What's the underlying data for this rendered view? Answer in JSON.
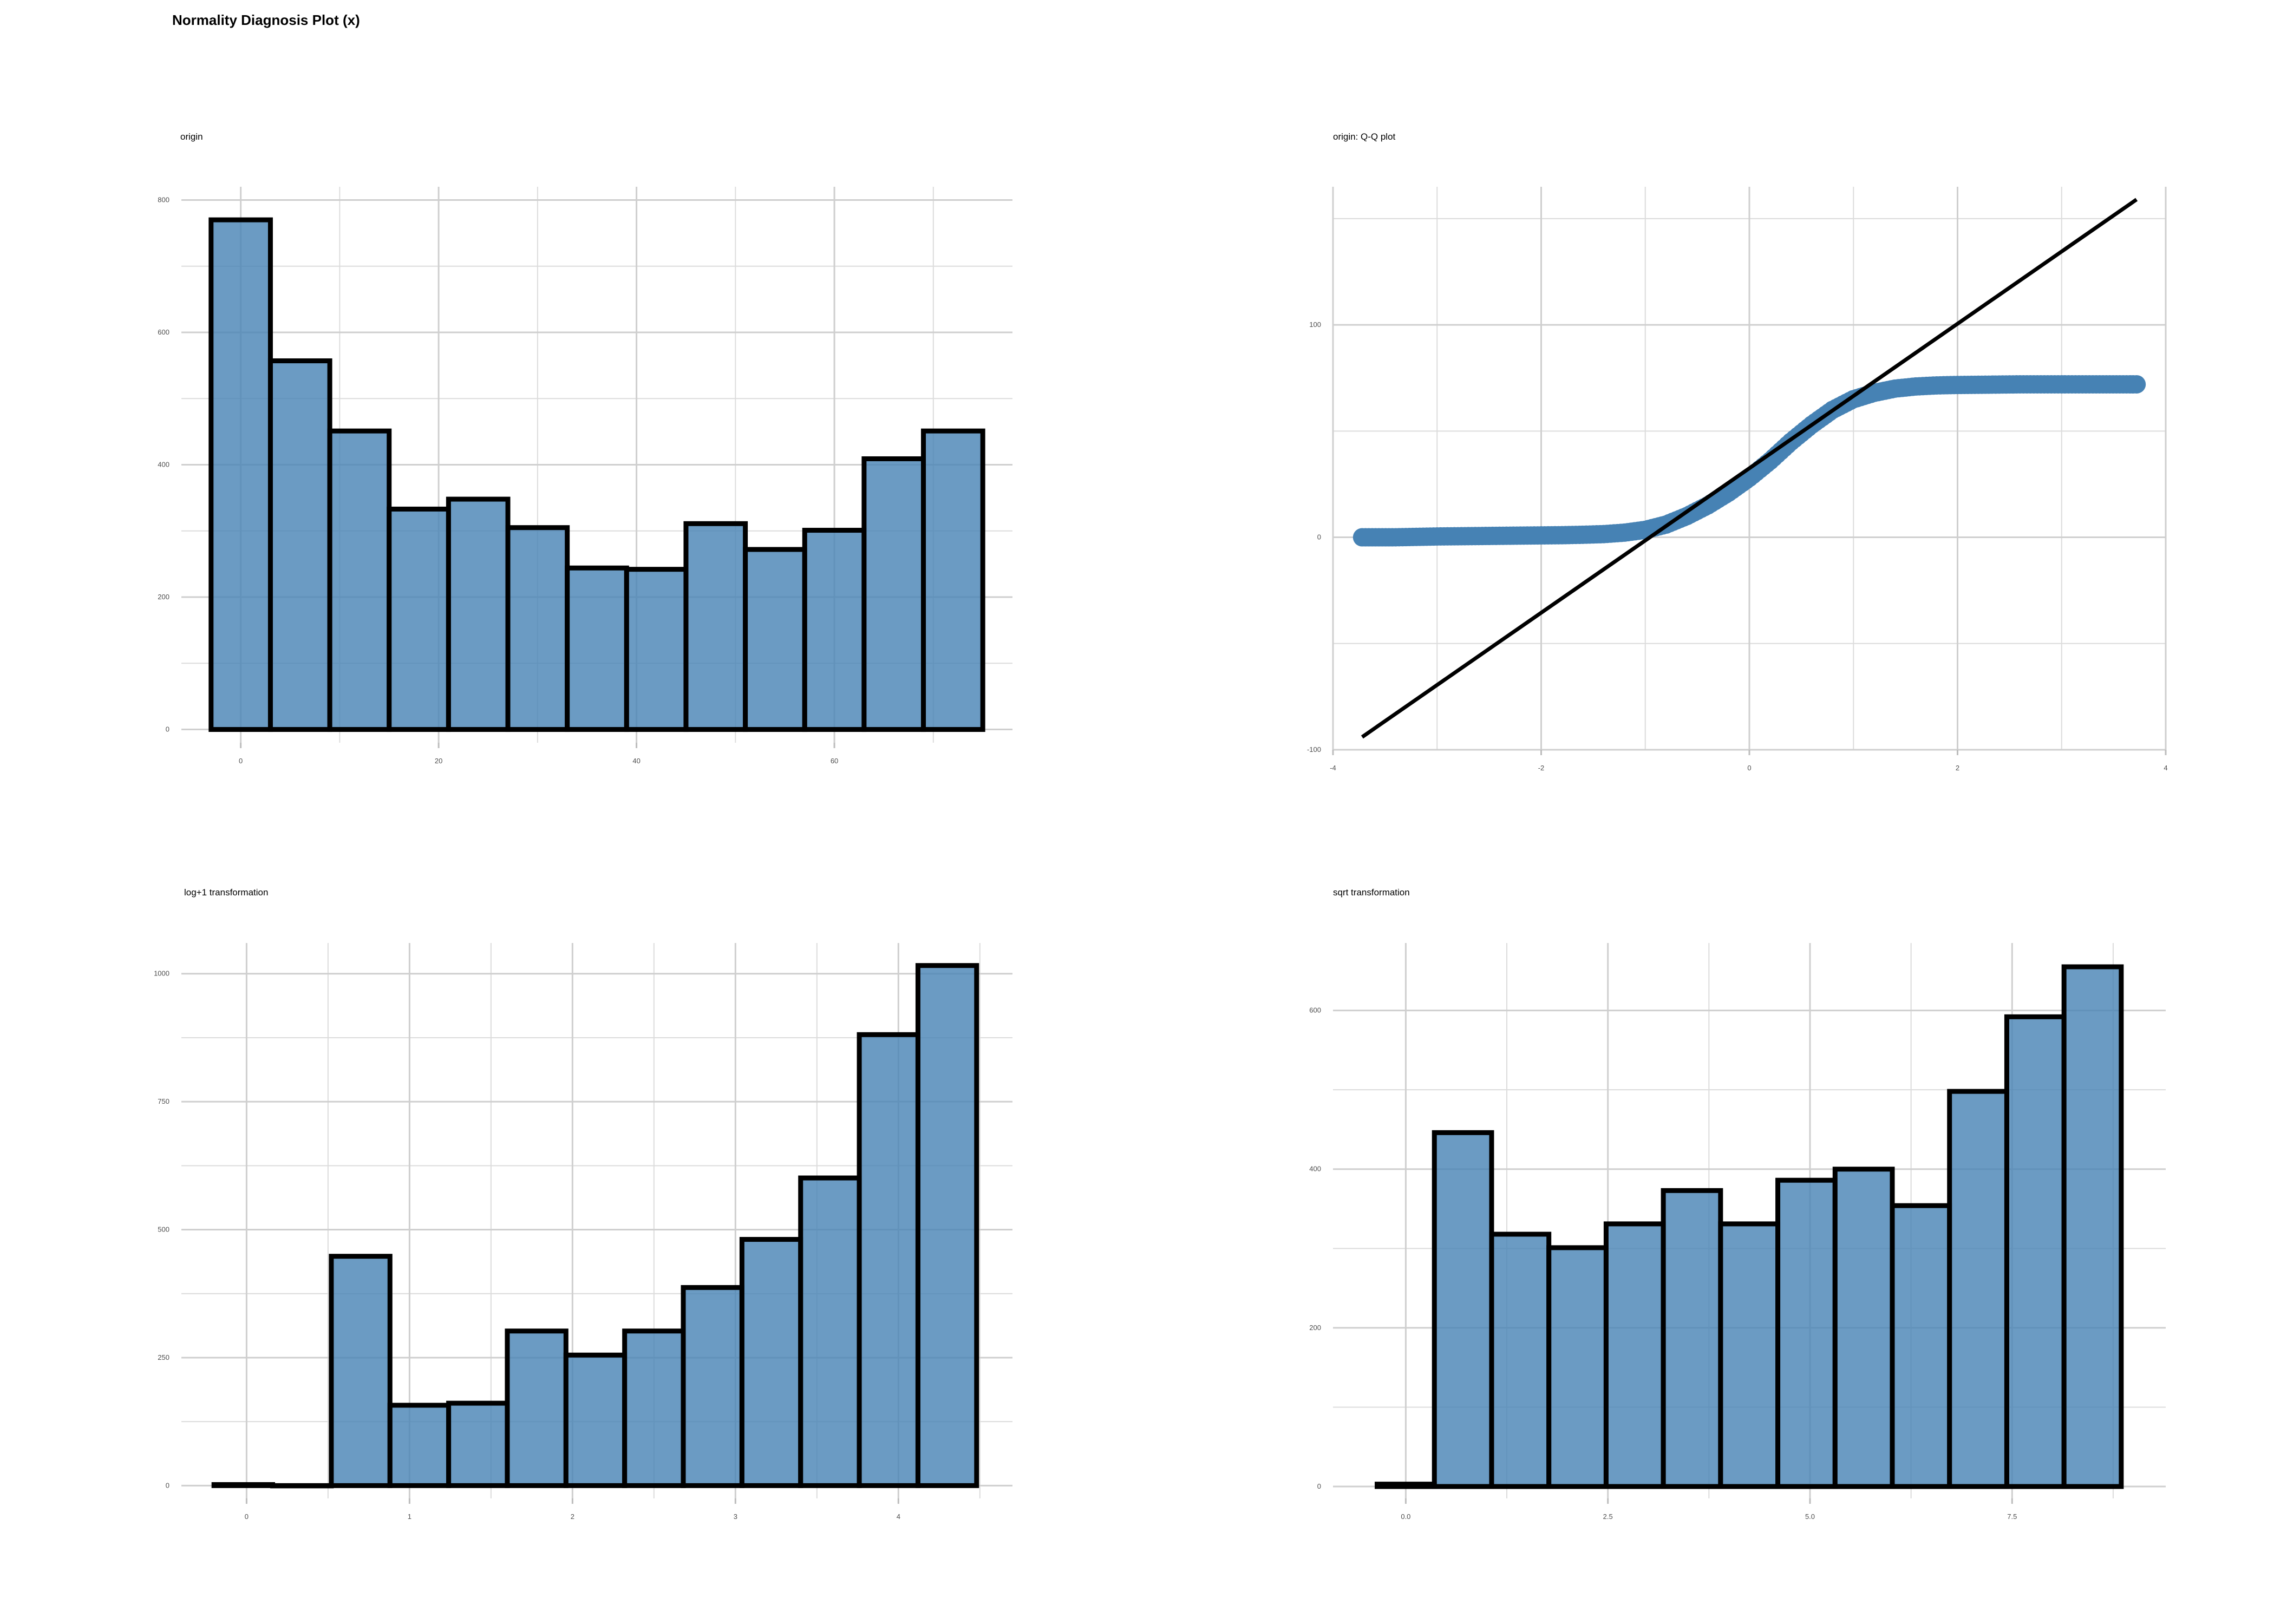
{
  "title": "Normality Diagnosis Plot (x)",
  "colors": {
    "bar_fill": "#4682b4",
    "bar_outline": "#000000",
    "grid": "#cfcfcf",
    "point": "#4682b4",
    "line": "#000000"
  },
  "chart_data": [
    {
      "id": "origin",
      "type": "bar",
      "title": "origin",
      "xlabel": "",
      "ylabel": "",
      "xlim": [
        -6,
        78
      ],
      "ylim": [
        -20,
        820
      ],
      "xticks": [
        0,
        20,
        40,
        60
      ],
      "xtick_labels": [
        "0",
        "20",
        "40",
        "60"
      ],
      "yticks": [
        0,
        200,
        400,
        600,
        800
      ],
      "ytick_labels": [
        "0",
        "200",
        "400",
        "600",
        "800"
      ],
      "bin_width": 6,
      "bin_starts": [
        -3,
        3,
        9,
        15,
        21,
        27,
        33,
        39,
        45,
        51,
        57,
        63,
        69
      ],
      "values": [
        770,
        557,
        451,
        333,
        348,
        305,
        244,
        242,
        311,
        272,
        301,
        409,
        451
      ],
      "grid": true
    },
    {
      "id": "qq",
      "type": "scatter",
      "title": "origin: Q-Q plot",
      "xlabel": "",
      "ylabel": "",
      "xlim": [
        -4,
        4
      ],
      "ylim": [
        -100,
        165
      ],
      "xticks": [
        -4,
        -2,
        0,
        2,
        4
      ],
      "xtick_labels": [
        "-4",
        "-2",
        "0",
        "2",
        "4"
      ],
      "yticks": [
        -100,
        0,
        100
      ],
      "ytick_labels": [
        "-100",
        "0",
        "100"
      ],
      "points": [
        [
          -3.72,
          0
        ],
        [
          -3.43,
          0
        ],
        [
          -3.3,
          0.1
        ],
        [
          -3.2,
          0.2
        ],
        [
          -3.1,
          0.3
        ],
        [
          -3.0,
          0.4
        ],
        [
          -2.8,
          0.5
        ],
        [
          -2.6,
          0.6
        ],
        [
          -2.4,
          0.7
        ],
        [
          -2.2,
          0.8
        ],
        [
          -2.0,
          0.9
        ],
        [
          -1.8,
          1.0
        ],
        [
          -1.6,
          1.2
        ],
        [
          -1.4,
          1.5
        ],
        [
          -1.2,
          2.2
        ],
        [
          -1.0,
          3.5
        ],
        [
          -0.8,
          6
        ],
        [
          -0.6,
          10
        ],
        [
          -0.4,
          15
        ],
        [
          -0.2,
          21
        ],
        [
          0.0,
          28
        ],
        [
          0.2,
          36
        ],
        [
          0.4,
          45
        ],
        [
          0.6,
          53
        ],
        [
          0.8,
          60
        ],
        [
          1.0,
          65
        ],
        [
          1.2,
          68
        ],
        [
          1.4,
          70
        ],
        [
          1.6,
          71
        ],
        [
          1.8,
          71.5
        ],
        [
          2.0,
          71.7
        ],
        [
          2.2,
          71.8
        ],
        [
          2.4,
          71.9
        ],
        [
          2.6,
          72
        ],
        [
          2.8,
          72
        ],
        [
          3.0,
          72
        ],
        [
          3.1,
          72
        ],
        [
          3.2,
          72
        ],
        [
          3.3,
          72
        ],
        [
          3.43,
          72
        ],
        [
          3.72,
          72
        ]
      ],
      "reference_line": [
        [
          -3.72,
          -94
        ],
        [
          3.72,
          159
        ]
      ],
      "grid": true
    },
    {
      "id": "log1p",
      "type": "bar",
      "title": "log+1 transformation",
      "xlabel": "",
      "ylabel": "",
      "xlim": [
        -0.4,
        4.7
      ],
      "ylim": [
        -25,
        1060
      ],
      "xticks": [
        0,
        1,
        2,
        3,
        4
      ],
      "xtick_labels": [
        "0",
        "1",
        "2",
        "3",
        "4"
      ],
      "yticks": [
        0,
        250,
        500,
        750,
        1000
      ],
      "ytick_labels": [
        "0",
        "250",
        "500",
        "750",
        "1000"
      ],
      "bin_width": 0.36,
      "bin_starts": [
        -0.2,
        0.16,
        0.52,
        0.88,
        1.24,
        1.6,
        1.96,
        2.32,
        2.68,
        3.04,
        3.4,
        3.76,
        4.12
      ],
      "values": [
        2,
        0,
        448,
        157,
        161,
        302,
        255,
        302,
        387,
        481,
        601,
        881,
        1016
      ],
      "grid": true
    },
    {
      "id": "sqrt",
      "type": "bar",
      "title": "sqrt transformation",
      "xlabel": "",
      "ylabel": "",
      "xlim": [
        -0.9,
        9.4
      ],
      "ylim": [
        -15,
        685
      ],
      "xticks": [
        0.0,
        2.5,
        5.0,
        7.5
      ],
      "xtick_labels": [
        "0.0",
        "2.5",
        "5.0",
        "7.5"
      ],
      "yticks": [
        0,
        200,
        400,
        600
      ],
      "ytick_labels": [
        "0",
        "200",
        "400",
        "600"
      ],
      "bin_width": 0.708,
      "bin_starts": [
        -0.354,
        0.354,
        1.062,
        1.77,
        2.478,
        3.186,
        3.894,
        4.602,
        5.31,
        6.018,
        6.726,
        7.434,
        8.142
      ],
      "values": [
        3,
        446,
        318,
        301,
        331,
        373,
        331,
        386,
        400,
        354,
        498,
        592,
        655
      ],
      "grid": true
    }
  ]
}
